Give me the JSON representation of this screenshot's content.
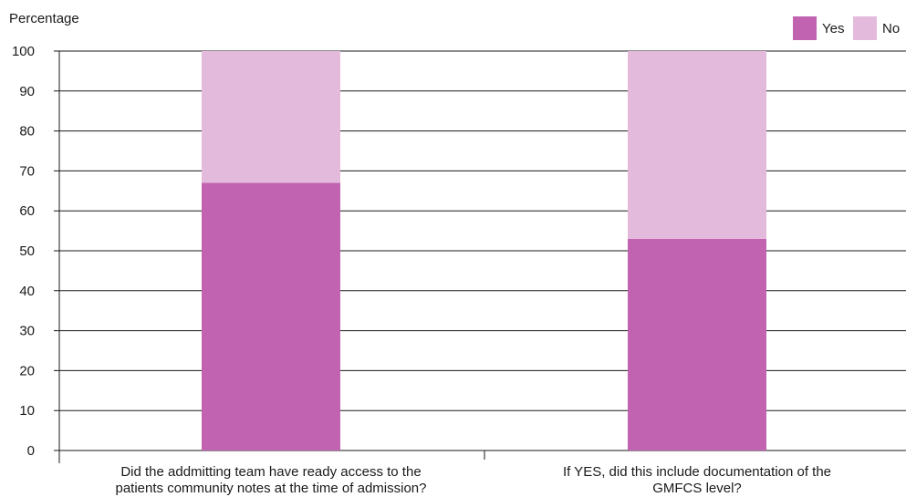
{
  "chart_data": {
    "type": "bar",
    "stacked": true,
    "ylabel": "Percentage",
    "ylim": [
      0,
      100
    ],
    "yticks": [
      0,
      10,
      20,
      30,
      40,
      50,
      60,
      70,
      80,
      90,
      100
    ],
    "grid": true,
    "legend_position": "top-right",
    "categories": [
      [
        "Did the addmitting team have ready access to the",
        "patients community notes at the time of admission?"
      ],
      [
        "If YES, did this include documentation of the",
        "GMFCS level?"
      ]
    ],
    "series": [
      {
        "name": "Yes",
        "color": "#c163b0",
        "values": [
          67,
          53
        ]
      },
      {
        "name": "No",
        "color": "#e4badc",
        "values": [
          33,
          47
        ]
      }
    ]
  }
}
